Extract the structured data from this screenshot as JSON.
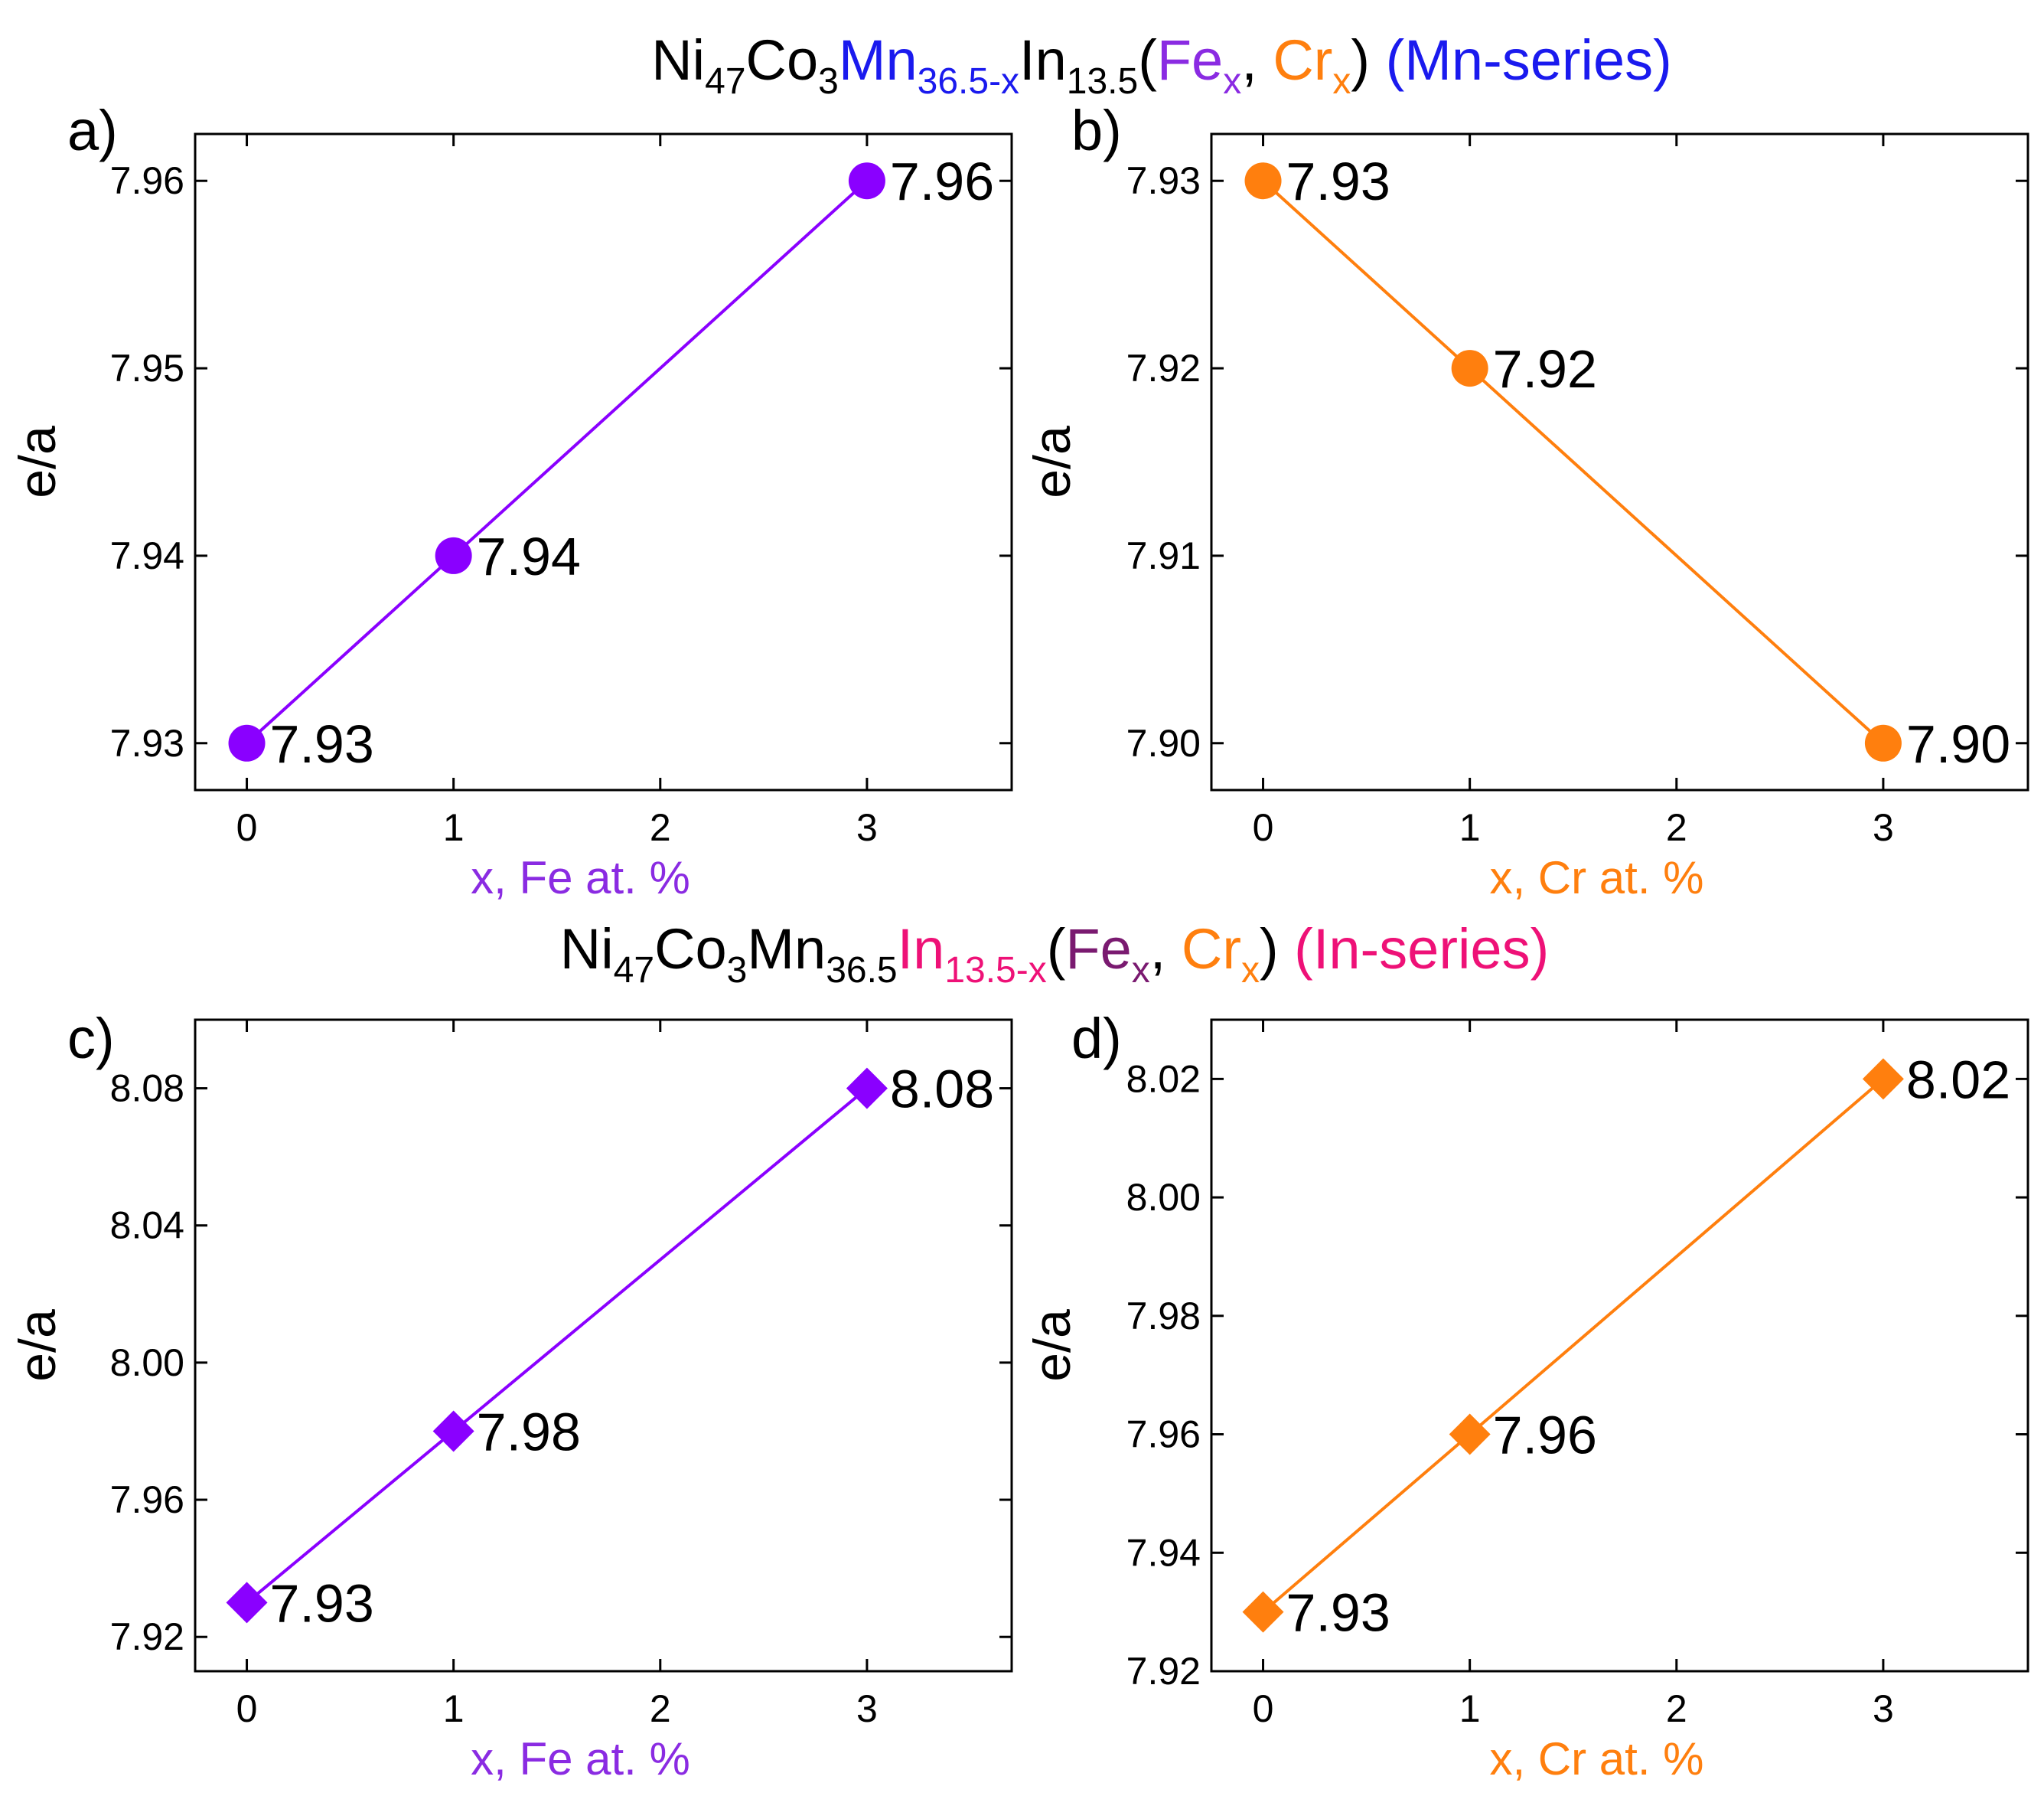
{
  "titles": [
    {
      "parts": [
        {
          "t": "Ni",
          "c": "#000000"
        },
        {
          "t": "47",
          "c": "#000000",
          "sub": true
        },
        {
          "t": "Co",
          "c": "#000000"
        },
        {
          "t": "3",
          "c": "#000000",
          "sub": true
        },
        {
          "t": "Mn",
          "c": "#1a1aee"
        },
        {
          "t": "36.5-x",
          "c": "#1a1aee",
          "sub": true
        },
        {
          "t": "In",
          "c": "#000000"
        },
        {
          "t": "13.5",
          "c": "#000000",
          "sub": true
        },
        {
          "t": "(",
          "c": "#000000"
        },
        {
          "t": "Fe",
          "c": "#8a2be2"
        },
        {
          "t": "x",
          "c": "#8a2be2",
          "sub": true
        },
        {
          "t": ", ",
          "c": "#000000"
        },
        {
          "t": "Cr",
          "c": "#ff7f0e"
        },
        {
          "t": "x",
          "c": "#ff7f0e",
          "sub": true
        },
        {
          "t": ") ",
          "c": "#000000"
        },
        {
          "t": "(Mn-series)",
          "c": "#1a1aee"
        }
      ]
    },
    {
      "parts": [
        {
          "t": "Ni",
          "c": "#000000"
        },
        {
          "t": "47",
          "c": "#000000",
          "sub": true
        },
        {
          "t": "Co",
          "c": "#000000"
        },
        {
          "t": "3",
          "c": "#000000",
          "sub": true
        },
        {
          "t": "Mn",
          "c": "#000000"
        },
        {
          "t": "36.5",
          "c": "#000000",
          "sub": true
        },
        {
          "t": "In",
          "c": "#ee1177"
        },
        {
          "t": "13.5-x",
          "c": "#ee1177",
          "sub": true
        },
        {
          "t": "(",
          "c": "#000000"
        },
        {
          "t": "Fe",
          "c": "#7a1a70"
        },
        {
          "t": "x",
          "c": "#7a1a70",
          "sub": true
        },
        {
          "t": ", ",
          "c": "#000000"
        },
        {
          "t": "Cr",
          "c": "#ff7f0e"
        },
        {
          "t": "x",
          "c": "#ff7f0e",
          "sub": true
        },
        {
          "t": ") ",
          "c": "#000000"
        },
        {
          "t": "(In-series)",
          "c": "#ee1177"
        }
      ]
    }
  ],
  "chart_data": [
    {
      "panel": "a)",
      "type": "line",
      "marker": "circle",
      "color": "#8a00ff",
      "x": [
        0,
        1,
        3
      ],
      "y": [
        7.93,
        7.94,
        7.96
      ],
      "labels": [
        "7.93",
        "7.94",
        "7.96"
      ],
      "xlabel": "x, Fe at. %",
      "xlabel_color": "#8a2be2",
      "ylabel": "e/a",
      "xlim": [
        -0.25,
        3.7
      ],
      "ylim": [
        7.9275,
        7.9625
      ],
      "xticks": [
        0,
        1,
        2,
        3
      ],
      "xtick_labels": [
        "0",
        "1",
        "2",
        "3"
      ],
      "yticks": [
        7.93,
        7.94,
        7.95,
        7.96
      ],
      "ytick_labels": [
        "7.93",
        "7.94",
        "7.95",
        "7.96"
      ],
      "grid": false
    },
    {
      "panel": "b)",
      "type": "line",
      "marker": "circle",
      "color": "#ff7f0e",
      "x": [
        0,
        1,
        3
      ],
      "y": [
        7.93,
        7.92,
        7.9
      ],
      "labels": [
        "7.93",
        "7.92",
        "7.90"
      ],
      "xlabel": "x, Cr at. %",
      "xlabel_color": "#ff7f0e",
      "ylabel": "e/a",
      "xlim": [
        -0.25,
        3.7
      ],
      "ylim": [
        7.8975,
        7.9325
      ],
      "xticks": [
        0,
        1,
        2,
        3
      ],
      "xtick_labels": [
        "0",
        "1",
        "2",
        "3"
      ],
      "yticks": [
        7.9,
        7.91,
        7.92,
        7.93
      ],
      "ytick_labels": [
        "7.90",
        "7.91",
        "7.92",
        "7.93"
      ],
      "grid": false
    },
    {
      "panel": "c)",
      "type": "line",
      "marker": "diamond",
      "color": "#8a00ff",
      "x": [
        0,
        1,
        3
      ],
      "y": [
        7.93,
        7.98,
        8.08
      ],
      "labels": [
        "7.93",
        "7.98",
        "8.08"
      ],
      "xlabel": "x, Fe at. %",
      "xlabel_color": "#8a2be2",
      "ylabel": "e/a",
      "xlim": [
        -0.25,
        3.7
      ],
      "ylim": [
        7.91,
        8.1
      ],
      "xticks": [
        0,
        1,
        2,
        3
      ],
      "xtick_labels": [
        "0",
        "1",
        "2",
        "3"
      ],
      "yticks": [
        7.92,
        7.96,
        8.0,
        8.04,
        8.08
      ],
      "ytick_labels": [
        "7.92",
        "7.96",
        "8.00",
        "8.04",
        "8.08"
      ],
      "grid": false
    },
    {
      "panel": "d)",
      "type": "line",
      "marker": "diamond",
      "color": "#ff7f0e",
      "x": [
        0,
        1,
        3
      ],
      "y": [
        7.93,
        7.96,
        8.02
      ],
      "labels": [
        "7.93",
        "7.96",
        "8.02"
      ],
      "xlabel": "x, Cr at. %",
      "xlabel_color": "#ff7f0e",
      "ylabel": "e/a",
      "xlim": [
        -0.25,
        3.7
      ],
      "ylim": [
        7.92,
        8.03
      ],
      "xticks": [
        0,
        1,
        2,
        3
      ],
      "xtick_labels": [
        "0",
        "1",
        "2",
        "3"
      ],
      "yticks": [
        7.92,
        7.94,
        7.96,
        7.98,
        8.0,
        8.02
      ],
      "ytick_labels": [
        "7.92",
        "7.94",
        "7.96",
        "7.98",
        "8.00",
        "8.02"
      ],
      "grid": false
    }
  ]
}
